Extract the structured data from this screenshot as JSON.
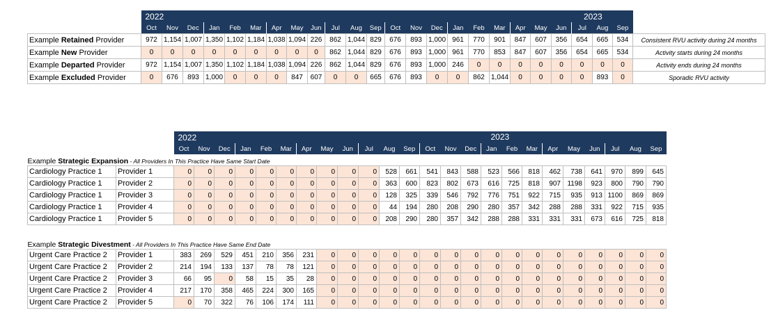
{
  "block1": {
    "year_left": "2022",
    "year_right": "2023",
    "months": [
      "Oct",
      "Nov",
      "Dec",
      "Jan",
      "Feb",
      "Mar",
      "Apr",
      "May",
      "Jun",
      "Jul",
      "Aug",
      "Sep",
      "Oct",
      "Nov",
      "Dec",
      "Jan",
      "Feb",
      "Mar",
      "Apr",
      "May",
      "Jun",
      "Jul",
      "Aug",
      "Sep"
    ],
    "rows": [
      {
        "label_prefix": "Example ",
        "label_bold": "Retained",
        "label_suffix": " Provider",
        "values": [
          "972",
          "1,154",
          "1,007",
          "1,350",
          "1,102",
          "1,184",
          "1,038",
          "1,094",
          "226",
          "862",
          "1,044",
          "829",
          "676",
          "893",
          "1,000",
          "961",
          "770",
          "901",
          "847",
          "607",
          "356",
          "654",
          "665",
          "534"
        ],
        "note": "Consistent RVU activity during 24 months"
      },
      {
        "label_prefix": "Example ",
        "label_bold": "New",
        "label_suffix": " Provider",
        "values": [
          "0",
          "0",
          "0",
          "0",
          "0",
          "0",
          "0",
          "0",
          "0",
          "862",
          "1,044",
          "829",
          "676",
          "893",
          "1,000",
          "961",
          "770",
          "853",
          "847",
          "607",
          "356",
          "654",
          "665",
          "534"
        ],
        "note": "Activity starts during 24 months"
      },
      {
        "label_prefix": "Example ",
        "label_bold": "Departed",
        "label_suffix": " Provider",
        "values": [
          "972",
          "1,154",
          "1,007",
          "1,350",
          "1,102",
          "1,184",
          "1,038",
          "1,094",
          "226",
          "862",
          "1,044",
          "829",
          "676",
          "893",
          "1,000",
          "246",
          "0",
          "0",
          "0",
          "0",
          "0",
          "0",
          "0",
          "0"
        ],
        "note": "Activity ends during 24 months"
      },
      {
        "label_prefix": "Example ",
        "label_bold": "Excluded",
        "label_suffix": " Provider",
        "values": [
          "0",
          "676",
          "893",
          "1,000",
          "0",
          "0",
          "0",
          "847",
          "607",
          "0",
          "0",
          "665",
          "676",
          "893",
          "0",
          "0",
          "862",
          "1,044",
          "0",
          "0",
          "0",
          "0",
          "893",
          "0"
        ],
        "note": "Sporadic RVU activity"
      }
    ]
  },
  "block2": {
    "year_left": "2022",
    "year_right": "2023",
    "months": [
      "Oct",
      "Nov",
      "Dec",
      "Jan",
      "Feb",
      "Mar",
      "Apr",
      "May",
      "Jun",
      "Jul",
      "Aug",
      "Sep",
      "Oct",
      "Nov",
      "Dec",
      "Jan",
      "Feb",
      "Mar",
      "Apr",
      "May",
      "Jun",
      "Jul",
      "Aug",
      "Sep"
    ],
    "expansion": {
      "title_prefix": "Example ",
      "title_bold": "Strategic Expansion",
      "title_sub": " - All Providers In This Practice Have Same Start Date",
      "rows": [
        {
          "practice": "Cardiology Practice 1",
          "provider": "Provider 1",
          "values": [
            "0",
            "0",
            "0",
            "0",
            "0",
            "0",
            "0",
            "0",
            "0",
            "0",
            "528",
            "661",
            "541",
            "843",
            "588",
            "523",
            "566",
            "818",
            "462",
            "738",
            "641",
            "970",
            "899",
            "645"
          ]
        },
        {
          "practice": "Cardiology Practice 1",
          "provider": "Provider 2",
          "values": [
            "0",
            "0",
            "0",
            "0",
            "0",
            "0",
            "0",
            "0",
            "0",
            "0",
            "363",
            "600",
            "823",
            "802",
            "673",
            "616",
            "725",
            "818",
            "907",
            "1198",
            "923",
            "800",
            "790",
            "790"
          ]
        },
        {
          "practice": "Cardiology Practice 1",
          "provider": "Provider 3",
          "values": [
            "0",
            "0",
            "0",
            "0",
            "0",
            "0",
            "0",
            "0",
            "0",
            "0",
            "128",
            "325",
            "339",
            "546",
            "792",
            "776",
            "751",
            "922",
            "715",
            "935",
            "913",
            "1100",
            "869",
            "869"
          ]
        },
        {
          "practice": "Cardiology Practice 1",
          "provider": "Provider 4",
          "values": [
            "0",
            "0",
            "0",
            "0",
            "0",
            "0",
            "0",
            "0",
            "0",
            "0",
            "44",
            "194",
            "280",
            "208",
            "290",
            "280",
            "357",
            "342",
            "288",
            "288",
            "331",
            "922",
            "715",
            "935"
          ]
        },
        {
          "practice": "Cardiology Practice 1",
          "provider": "Provider 5",
          "values": [
            "0",
            "0",
            "0",
            "0",
            "0",
            "0",
            "0",
            "0",
            "0",
            "0",
            "208",
            "290",
            "280",
            "357",
            "342",
            "288",
            "288",
            "331",
            "331",
            "331",
            "673",
            "616",
            "725",
            "818"
          ]
        }
      ]
    },
    "divestment": {
      "title_prefix": "Example ",
      "title_bold": "Strategic Divestment",
      "title_sub": " - All Providers In This Practice Have Same End Date",
      "rows": [
        {
          "practice": "Urgent Care Practice 2",
          "provider": "Provider 1",
          "values": [
            "383",
            "269",
            "529",
            "451",
            "210",
            "356",
            "231",
            "0",
            "0",
            "0",
            "0",
            "0",
            "0",
            "0",
            "0",
            "0",
            "0",
            "0",
            "0",
            "0",
            "0",
            "0",
            "0",
            "0"
          ]
        },
        {
          "practice": "Urgent Care Practice 2",
          "provider": "Provider 2",
          "values": [
            "214",
            "194",
            "133",
            "137",
            "78",
            "78",
            "121",
            "0",
            "0",
            "0",
            "0",
            "0",
            "0",
            "0",
            "0",
            "0",
            "0",
            "0",
            "0",
            "0",
            "0",
            "0",
            "0",
            "0"
          ]
        },
        {
          "practice": "Urgent Care Practice 2",
          "provider": "Provider 3",
          "values": [
            "66",
            "95",
            "0",
            "58",
            "15",
            "35",
            "28",
            "0",
            "0",
            "0",
            "0",
            "0",
            "0",
            "0",
            "0",
            "0",
            "0",
            "0",
            "0",
            "0",
            "0",
            "0",
            "0",
            "0"
          ]
        },
        {
          "practice": "Urgent Care Practice 2",
          "provider": "Provider 4",
          "values": [
            "217",
            "170",
            "358",
            "465",
            "224",
            "300",
            "165",
            "0",
            "0",
            "0",
            "0",
            "0",
            "0",
            "0",
            "0",
            "0",
            "0",
            "0",
            "0",
            "0",
            "0",
            "0",
            "0",
            "0"
          ]
        },
        {
          "practice": "Urgent Care Practice 2",
          "provider": "Provider 5",
          "values": [
            "0",
            "70",
            "322",
            "76",
            "106",
            "174",
            "111",
            "0",
            "0",
            "0",
            "0",
            "0",
            "0",
            "0",
            "0",
            "0",
            "0",
            "0",
            "0",
            "0",
            "0",
            "0",
            "0",
            "0"
          ]
        }
      ]
    }
  },
  "colors": {
    "header_bg": "#1f3a5f",
    "zero_fill": "#fce4d6",
    "border": "#bfbfbf"
  }
}
